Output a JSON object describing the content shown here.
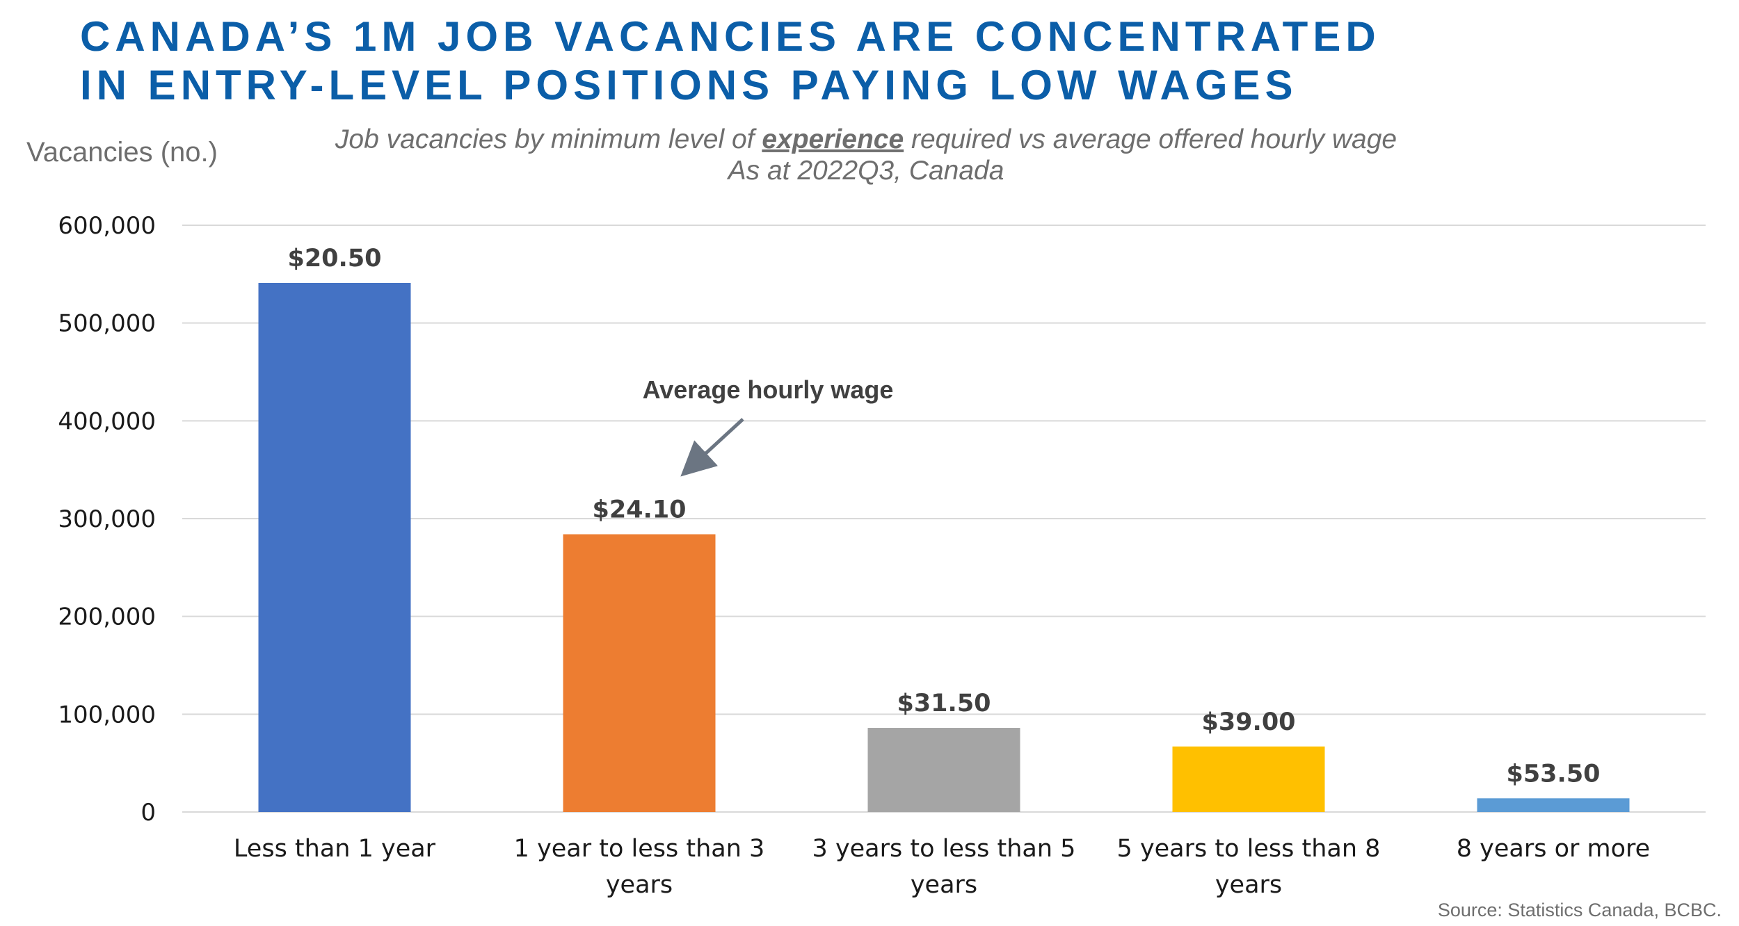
{
  "title_lines": [
    "CANADA’S 1M JOB VACANCIES ARE CONCENTRATED",
    "IN ENTRY-LEVEL POSITIONS PAYING LOW WAGES"
  ],
  "subtitle": {
    "line1_before": "Job vacancies by minimum level of ",
    "line1_emphasis": "experience",
    "line1_after": " required vs average offered hourly wage",
    "line2": "As at 2022Q3, Canada"
  },
  "annotation": "Average hourly wage",
  "source": "Source: Statistics Canada, BCBC.",
  "colors": {
    "title": "#0b5ea8",
    "gridline": "#d9d9d9",
    "arrow": "#6b7582"
  },
  "chart_data": {
    "type": "bar",
    "ylabel": "Vacancies (no.)",
    "ylim": [
      0,
      600000
    ],
    "yticks": [
      0,
      100000,
      200000,
      300000,
      400000,
      500000,
      600000
    ],
    "ytick_labels": [
      "0",
      "100,000",
      "200,000",
      "300,000",
      "400,000",
      "500,000",
      "600,000"
    ],
    "grid": true,
    "categories": [
      "Less than 1 year",
      "1 year to less than 3 years",
      "3 years to less than 5 years",
      "5 years to less than 8 years",
      "8 years or more"
    ],
    "category_label_lines": [
      [
        "Less than 1 year"
      ],
      [
        "1 year to less than 3",
        "years"
      ],
      [
        "3 years to less than 5",
        "years"
      ],
      [
        "5 years to less than 8",
        "years"
      ],
      [
        "8 years or more"
      ]
    ],
    "values": [
      541000,
      284000,
      86000,
      67000,
      14000
    ],
    "data_labels": [
      "$20.50",
      "$24.10",
      "$31.50",
      "$39.00",
      "$53.50"
    ],
    "bar_colors": [
      "#4472c4",
      "#ed7d31",
      "#a5a5a5",
      "#ffc000",
      "#5b9bd5"
    ]
  }
}
